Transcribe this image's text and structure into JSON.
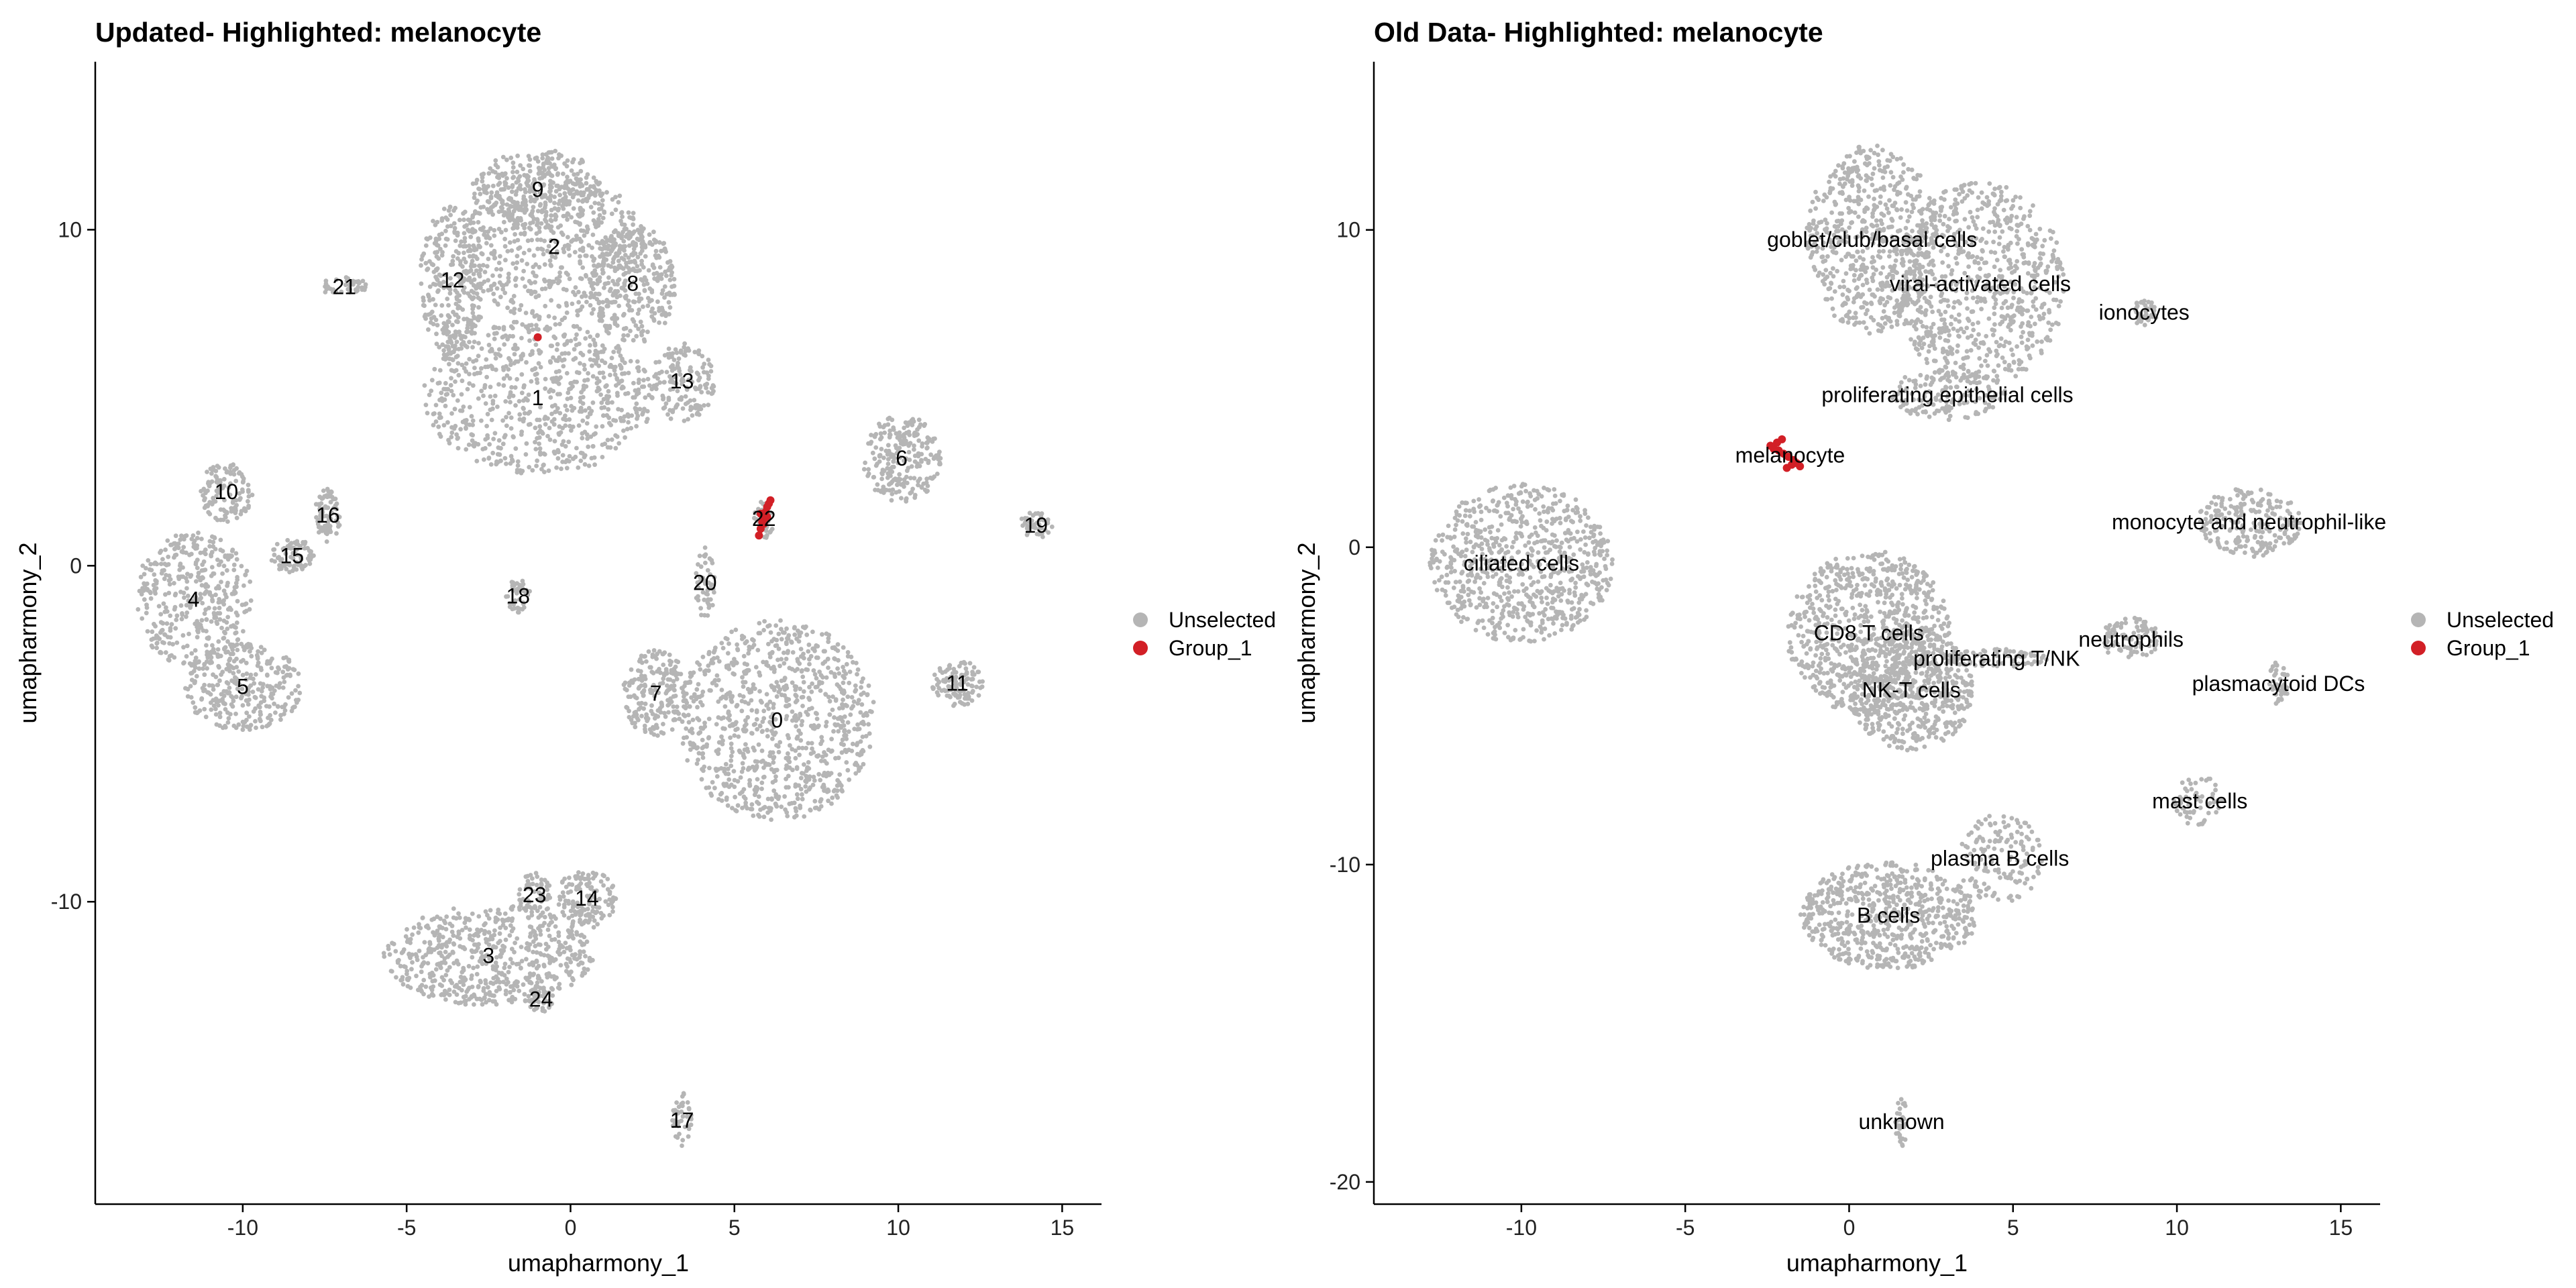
{
  "colors": {
    "unselected": "#b5b5b5",
    "group_1": "#d21f26",
    "axis": "#000000"
  },
  "chart_data": [
    {
      "type": "scatter",
      "title": "Updated- Highlighted: melanocyte",
      "xlabel": "umapharmony_1",
      "ylabel": "umapharmony_2",
      "xlim": [
        -14.5,
        16.2
      ],
      "ylim": [
        -19,
        15
      ],
      "xticks": [
        -10,
        -5,
        0,
        5,
        10,
        15
      ],
      "yticks": [
        -10,
        0,
        10
      ],
      "grid": false,
      "legend": {
        "position": "right",
        "entries": [
          {
            "name": "Unselected",
            "color": "#b5b5b5"
          },
          {
            "name": "Group_1",
            "color": "#d21f26"
          }
        ]
      },
      "clusters": [
        {
          "label": "0",
          "x": 6.3,
          "y": -4.6,
          "rx": 3.0,
          "ry": 3.0,
          "n": 900
        },
        {
          "label": "1",
          "x": -1.0,
          "y": 5.0,
          "rx": 3.5,
          "ry": 2.3,
          "n": 700
        },
        {
          "label": "2",
          "x": -0.5,
          "y": 9.5,
          "rx": 2.8,
          "ry": 2.2,
          "n": 550
        },
        {
          "label": "3",
          "x": -2.5,
          "y": -11.6,
          "rx": 3.2,
          "ry": 1.5,
          "n": 600
        },
        {
          "label": "4",
          "x": -11.5,
          "y": -1.0,
          "rx": 1.8,
          "ry": 2.0,
          "n": 400
        },
        {
          "label": "5",
          "x": -10.0,
          "y": -3.6,
          "rx": 1.8,
          "ry": 1.3,
          "n": 300
        },
        {
          "label": "6",
          "x": 10.1,
          "y": 3.2,
          "rx": 1.2,
          "ry": 1.3,
          "n": 230
        },
        {
          "label": "7",
          "x": 2.6,
          "y": -3.8,
          "rx": 1.0,
          "ry": 1.3,
          "n": 200
        },
        {
          "label": "8",
          "x": 1.9,
          "y": 8.4,
          "rx": 1.3,
          "ry": 1.8,
          "n": 300
        },
        {
          "label": "9",
          "x": -1.0,
          "y": 11.2,
          "rx": 2.0,
          "ry": 1.2,
          "n": 300
        },
        {
          "label": "10",
          "x": -10.5,
          "y": 2.2,
          "rx": 0.8,
          "ry": 0.9,
          "n": 120
        },
        {
          "label": "11",
          "x": 11.8,
          "y": -3.5,
          "rx": 0.8,
          "ry": 0.7,
          "n": 110
        },
        {
          "label": "12",
          "x": -3.6,
          "y": 8.5,
          "rx": 1.0,
          "ry": 2.2,
          "n": 300
        },
        {
          "label": "13",
          "x": 3.4,
          "y": 5.5,
          "rx": 1.0,
          "ry": 1.2,
          "n": 150
        },
        {
          "label": "14",
          "x": 0.5,
          "y": -9.9,
          "rx": 0.9,
          "ry": 0.9,
          "n": 130
        },
        {
          "label": "15",
          "x": -8.5,
          "y": 0.3,
          "rx": 0.7,
          "ry": 0.5,
          "n": 80
        },
        {
          "label": "16",
          "x": -7.4,
          "y": 1.5,
          "rx": 0.4,
          "ry": 0.8,
          "n": 80
        },
        {
          "label": "17",
          "x": 3.4,
          "y": -16.5,
          "rx": 0.3,
          "ry": 0.9,
          "n": 40
        },
        {
          "label": "18",
          "x": -1.6,
          "y": -0.9,
          "rx": 0.4,
          "ry": 0.5,
          "n": 40
        },
        {
          "label": "19",
          "x": 14.2,
          "y": 1.2,
          "rx": 0.5,
          "ry": 0.4,
          "n": 45
        },
        {
          "label": "20",
          "x": 4.1,
          "y": -0.5,
          "rx": 0.3,
          "ry": 1.1,
          "n": 50
        },
        {
          "label": "21",
          "x": -6.9,
          "y": 8.3,
          "rx": 0.7,
          "ry": 0.3,
          "n": 40
        },
        {
          "label": "22",
          "x": 5.9,
          "y": 1.4,
          "rx": 0.3,
          "ry": 0.6,
          "n": 30
        },
        {
          "label": "23",
          "x": -1.1,
          "y": -9.8,
          "rx": 0.5,
          "ry": 0.7,
          "n": 60
        },
        {
          "label": "24",
          "x": -0.9,
          "y": -12.9,
          "rx": 0.4,
          "ry": 0.4,
          "n": 40
        }
      ],
      "highlighted": [
        {
          "x": 5.75,
          "y": 0.9
        },
        {
          "x": 5.8,
          "y": 1.1
        },
        {
          "x": 5.85,
          "y": 1.3
        },
        {
          "x": 5.9,
          "y": 1.5
        },
        {
          "x": 5.95,
          "y": 1.6
        },
        {
          "x": 6.0,
          "y": 1.75
        },
        {
          "x": 6.05,
          "y": 1.85
        },
        {
          "x": 6.1,
          "y": 1.95
        },
        {
          "x": 5.8,
          "y": 1.55
        },
        {
          "x": 5.9,
          "y": 1.25
        },
        {
          "x": 6.0,
          "y": 1.45
        },
        {
          "x": -1.0,
          "y": 6.8
        }
      ]
    },
    {
      "type": "scatter",
      "title": "Old Data- Highlighted: melanocyte",
      "xlabel": "umapharmony_1",
      "ylabel": "umapharmony_2",
      "xlim": [
        -14.5,
        16.2
      ],
      "ylim": [
        -20.7,
        15.3
      ],
      "xticks": [
        -10,
        -5,
        0,
        5,
        10,
        15
      ],
      "yticks": [
        -20,
        -10,
        0,
        10
      ],
      "grid": false,
      "legend": {
        "position": "right",
        "entries": [
          {
            "name": "Unselected",
            "color": "#b5b5b5"
          },
          {
            "name": "Group_1",
            "color": "#d21f26"
          }
        ]
      },
      "clusters": [
        {
          "label": "goblet/club/basal cells",
          "x": 0.7,
          "y": 9.7,
          "rx": 2.0,
          "ry": 3.0,
          "n": 600
        },
        {
          "label": "viral-activated cells",
          "x": 4.0,
          "y": 8.3,
          "rx": 2.6,
          "ry": 3.2,
          "n": 750
        },
        {
          "label": "ionocytes",
          "x": 9.0,
          "y": 7.4,
          "rx": 0.4,
          "ry": 0.4,
          "n": 40
        },
        {
          "label": "proliferating epithelial cells",
          "x": 3.0,
          "y": 4.8,
          "rx": 1.8,
          "ry": 0.8,
          "n": 150
        },
        {
          "label": "melanocyte",
          "x": -1.8,
          "y": 2.9,
          "rx": 0.3,
          "ry": 0.3,
          "n": 0
        },
        {
          "label": "ciliated cells",
          "x": -10.0,
          "y": -0.5,
          "rx": 2.8,
          "ry": 2.5,
          "n": 750
        },
        {
          "label": "monocyte and neutrophil-like",
          "x": 12.2,
          "y": 0.8,
          "rx": 1.6,
          "ry": 1.1,
          "n": 220
        },
        {
          "label": "CD8 T cells",
          "x": 0.6,
          "y": -2.7,
          "rx": 2.5,
          "ry": 2.6,
          "n": 800
        },
        {
          "label": "NK-T cells",
          "x": 1.9,
          "y": -4.5,
          "rx": 1.9,
          "ry": 1.9,
          "n": 500
        },
        {
          "label": "neutrophils",
          "x": 8.6,
          "y": -2.9,
          "rx": 0.9,
          "ry": 0.7,
          "n": 100
        },
        {
          "label": "proliferating T/NK",
          "x": 4.5,
          "y": -3.5,
          "rx": 1.6,
          "ry": 0.3,
          "n": 70
        },
        {
          "label": "plasmacytoid DCs",
          "x": 13.1,
          "y": -4.3,
          "rx": 0.3,
          "ry": 0.7,
          "n": 40
        },
        {
          "label": "mast cells",
          "x": 10.7,
          "y": -8.0,
          "rx": 0.8,
          "ry": 0.8,
          "n": 60
        },
        {
          "label": "plasma B cells",
          "x": 4.6,
          "y": -9.8,
          "rx": 1.3,
          "ry": 1.4,
          "n": 140
        },
        {
          "label": "B cells",
          "x": 1.2,
          "y": -11.6,
          "rx": 2.7,
          "ry": 1.7,
          "n": 650
        },
        {
          "label": "unknown",
          "x": 1.6,
          "y": -18.1,
          "rx": 0.2,
          "ry": 0.8,
          "n": 30
        }
      ],
      "highlighted": [
        {
          "x": -2.3,
          "y": 3.1
        },
        {
          "x": -2.15,
          "y": 3.05
        },
        {
          "x": -2.0,
          "y": 2.95
        },
        {
          "x": -1.85,
          "y": 2.85
        },
        {
          "x": -1.7,
          "y": 2.75
        },
        {
          "x": -1.6,
          "y": 2.65
        },
        {
          "x": -1.5,
          "y": 2.55
        },
        {
          "x": -2.2,
          "y": 3.3
        },
        {
          "x": -2.05,
          "y": 3.4
        },
        {
          "x": -1.9,
          "y": 2.5
        },
        {
          "x": -2.4,
          "y": 3.2
        },
        {
          "x": -1.75,
          "y": 2.6
        }
      ]
    }
  ]
}
